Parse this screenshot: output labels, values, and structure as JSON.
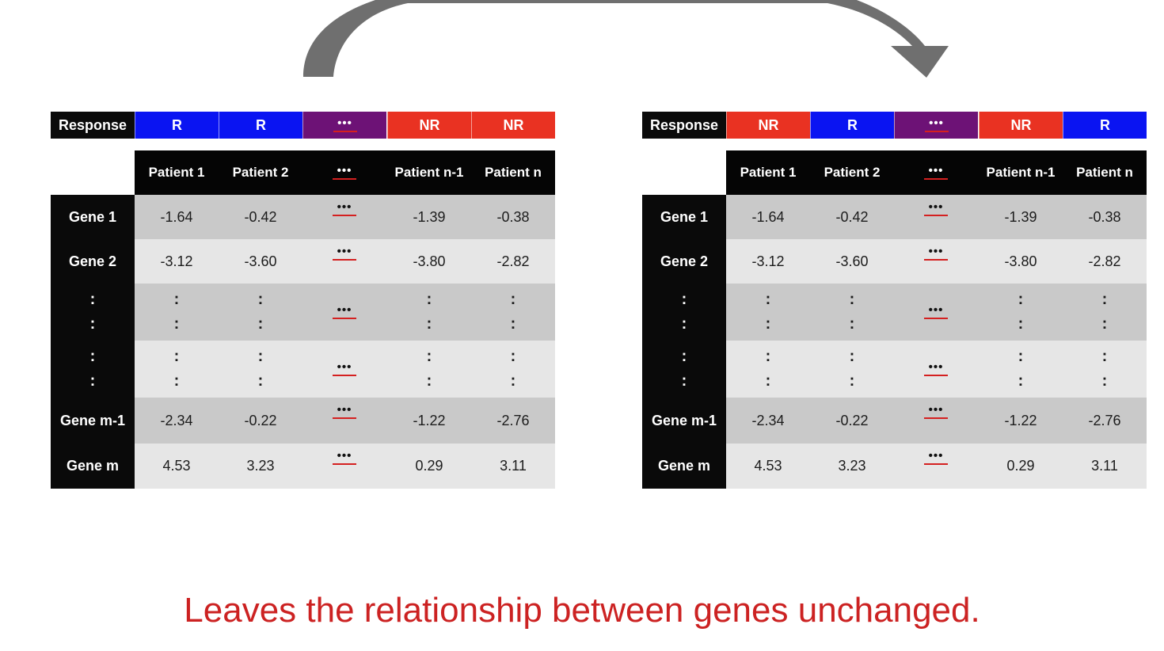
{
  "colors": {
    "R": "#0a14f2",
    "NR": "#e93222",
    "dots": "#6d1276",
    "caption": "#cc2222",
    "underline": "#d42020"
  },
  "tables": [
    {
      "response_label": "Response",
      "responses": [
        "R",
        "R",
        "•••",
        "NR",
        "NR"
      ],
      "response_kinds": [
        "R",
        "R",
        "dots",
        "NR",
        "NR"
      ],
      "headers": [
        "Patient 1",
        "Patient 2",
        "•••",
        "Patient n-1",
        "Patient n"
      ],
      "rows": [
        {
          "label": "Gene 1",
          "cells": [
            "-1.64",
            "-0.42",
            "•••",
            "-1.39",
            "-0.38"
          ]
        },
        {
          "label": "Gene 2",
          "cells": [
            "-3.12",
            "-3.60",
            "•••",
            "-3.80",
            "-2.82"
          ]
        },
        {
          "label": ":",
          "cells": [
            ":",
            ":",
            "•••",
            ":",
            ":"
          ]
        },
        {
          "label": ":",
          "cells": [
            ":",
            ":",
            "•••",
            ":",
            ":"
          ]
        },
        {
          "label": "Gene m-1",
          "cells": [
            "-2.34",
            "-0.22",
            "•••",
            "-1.22",
            "-2.76"
          ]
        },
        {
          "label": "Gene m",
          "cells": [
            "4.53",
            "3.23",
            "•••",
            "0.29",
            "3.11"
          ]
        }
      ]
    },
    {
      "response_label": "Response",
      "responses": [
        "NR",
        "R",
        "•••",
        "NR",
        "R"
      ],
      "response_kinds": [
        "NR",
        "R",
        "dots",
        "NR",
        "R"
      ],
      "headers": [
        "Patient 1",
        "Patient 2",
        "•••",
        "Patient n-1",
        "Patient n"
      ],
      "rows": [
        {
          "label": "Gene 1",
          "cells": [
            "-1.64",
            "-0.42",
            "•••",
            "-1.39",
            "-0.38"
          ]
        },
        {
          "label": "Gene 2",
          "cells": [
            "-3.12",
            "-3.60",
            "•••",
            "-3.80",
            "-2.82"
          ]
        },
        {
          "label": ":",
          "cells": [
            ":",
            ":",
            "•••",
            ":",
            ":"
          ]
        },
        {
          "label": ":",
          "cells": [
            ":",
            ":",
            "•••",
            ":",
            ":"
          ]
        },
        {
          "label": "Gene m-1",
          "cells": [
            "-2.34",
            "-0.22",
            "•••",
            "-1.22",
            "-2.76"
          ]
        },
        {
          "label": "Gene m",
          "cells": [
            "4.53",
            "3.23",
            "•••",
            "0.29",
            "3.11"
          ]
        }
      ]
    }
  ],
  "caption": "Leaves the relationship between genes unchanged."
}
